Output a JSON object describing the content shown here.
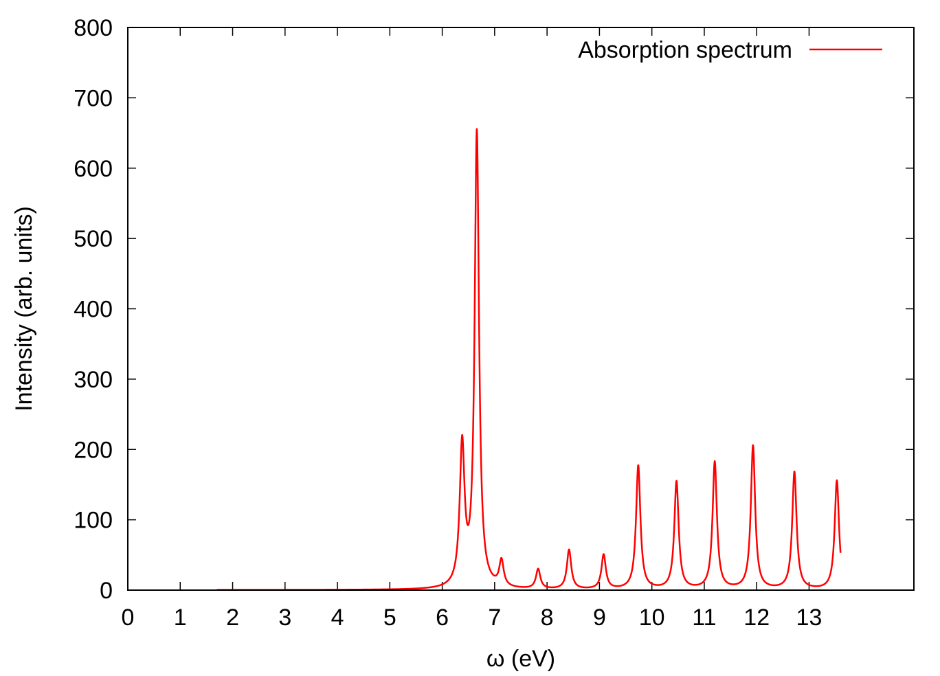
{
  "chart_data": {
    "type": "line",
    "title": "",
    "xlabel": "ω (eV)",
    "ylabel": "Intensity (arb. units)",
    "xlim": [
      0,
      15
    ],
    "ylim": [
      0,
      800
    ],
    "x_ticks": [
      0,
      1,
      2,
      3,
      4,
      5,
      6,
      7,
      8,
      9,
      10,
      11,
      12,
      13
    ],
    "y_ticks": [
      0,
      100,
      200,
      300,
      400,
      500,
      600,
      700,
      800
    ],
    "x_tick_labels": [
      "0",
      "1",
      "2",
      "3",
      "4",
      "5",
      "6",
      "7",
      "8",
      "9",
      "10",
      "11",
      "12",
      "13"
    ],
    "y_tick_labels": [
      "0",
      "100",
      "200",
      "300",
      "400",
      "500",
      "600",
      "700",
      "800"
    ],
    "grid": false,
    "legend_position": "top-right",
    "series": [
      {
        "name": "Absorption spectrum",
        "color": "#ff0000",
        "x_range": [
          1.7,
          13.6
        ],
        "peaks": [
          {
            "x": 6.38,
            "y": 200
          },
          {
            "x": 6.66,
            "y": 648
          },
          {
            "x": 7.13,
            "y": 37
          },
          {
            "x": 7.83,
            "y": 28
          },
          {
            "x": 8.42,
            "y": 56
          },
          {
            "x": 9.08,
            "y": 49
          },
          {
            "x": 9.74,
            "y": 176
          },
          {
            "x": 10.47,
            "y": 153
          },
          {
            "x": 11.2,
            "y": 181
          },
          {
            "x": 11.93,
            "y": 204
          },
          {
            "x": 12.72,
            "y": 167
          },
          {
            "x": 13.53,
            "y": 155
          }
        ],
        "end_value": 53
      }
    ]
  }
}
